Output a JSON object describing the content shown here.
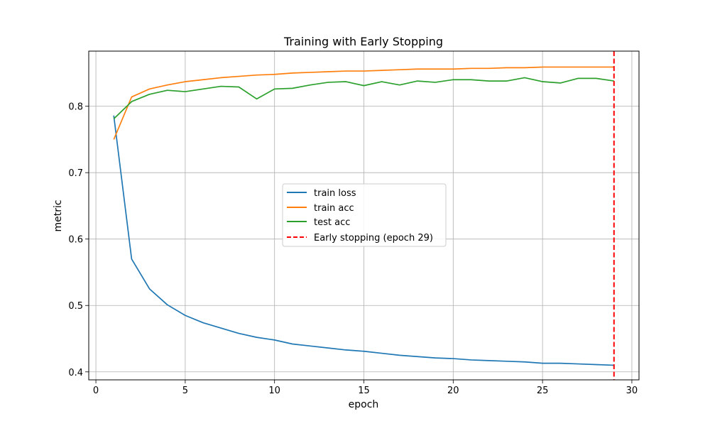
{
  "chart_data": {
    "type": "line",
    "title": "Training with Early Stopping",
    "xlabel": "epoch",
    "ylabel": "metric",
    "xlim": [
      -0.4,
      30.4
    ],
    "ylim": [
      0.388,
      0.883
    ],
    "xticks": [
      0,
      5,
      10,
      15,
      20,
      25,
      30
    ],
    "yticks": [
      0.4,
      0.5,
      0.6,
      0.7,
      0.8
    ],
    "ytick_labels": [
      "0.4",
      "0.5",
      "0.6",
      "0.7",
      "0.8"
    ],
    "grid": true,
    "legend_position": "center",
    "x": [
      1,
      2,
      3,
      4,
      5,
      6,
      7,
      8,
      9,
      10,
      11,
      12,
      13,
      14,
      15,
      16,
      17,
      18,
      19,
      20,
      21,
      22,
      23,
      24,
      25,
      26,
      27,
      28,
      29
    ],
    "series": [
      {
        "name": "train loss",
        "color": "#1f77b4",
        "values": [
          0.786,
          0.57,
          0.525,
          0.501,
          0.485,
          0.474,
          0.466,
          0.458,
          0.452,
          0.448,
          0.442,
          0.439,
          0.436,
          0.433,
          0.431,
          0.428,
          0.425,
          0.423,
          0.421,
          0.42,
          0.418,
          0.417,
          0.416,
          0.415,
          0.413,
          0.413,
          0.412,
          0.411,
          0.41
        ]
      },
      {
        "name": "train acc",
        "color": "#ff7f0e",
        "values": [
          0.75,
          0.814,
          0.826,
          0.832,
          0.837,
          0.84,
          0.843,
          0.845,
          0.847,
          0.848,
          0.85,
          0.851,
          0.852,
          0.853,
          0.853,
          0.854,
          0.855,
          0.856,
          0.856,
          0.856,
          0.857,
          0.857,
          0.858,
          0.858,
          0.859,
          0.859,
          0.859,
          0.859,
          0.859
        ]
      },
      {
        "name": "test acc",
        "color": "#2ca02c",
        "values": [
          0.781,
          0.807,
          0.818,
          0.824,
          0.822,
          0.826,
          0.83,
          0.829,
          0.811,
          0.826,
          0.827,
          0.832,
          0.836,
          0.837,
          0.831,
          0.837,
          0.832,
          0.838,
          0.836,
          0.84,
          0.84,
          0.838,
          0.838,
          0.843,
          0.837,
          0.835,
          0.842,
          0.842,
          0.838
        ]
      }
    ],
    "vline": {
      "x": 29,
      "name": "Early stopping (epoch 29)",
      "color": "#ff0000",
      "style": "dashed"
    }
  }
}
